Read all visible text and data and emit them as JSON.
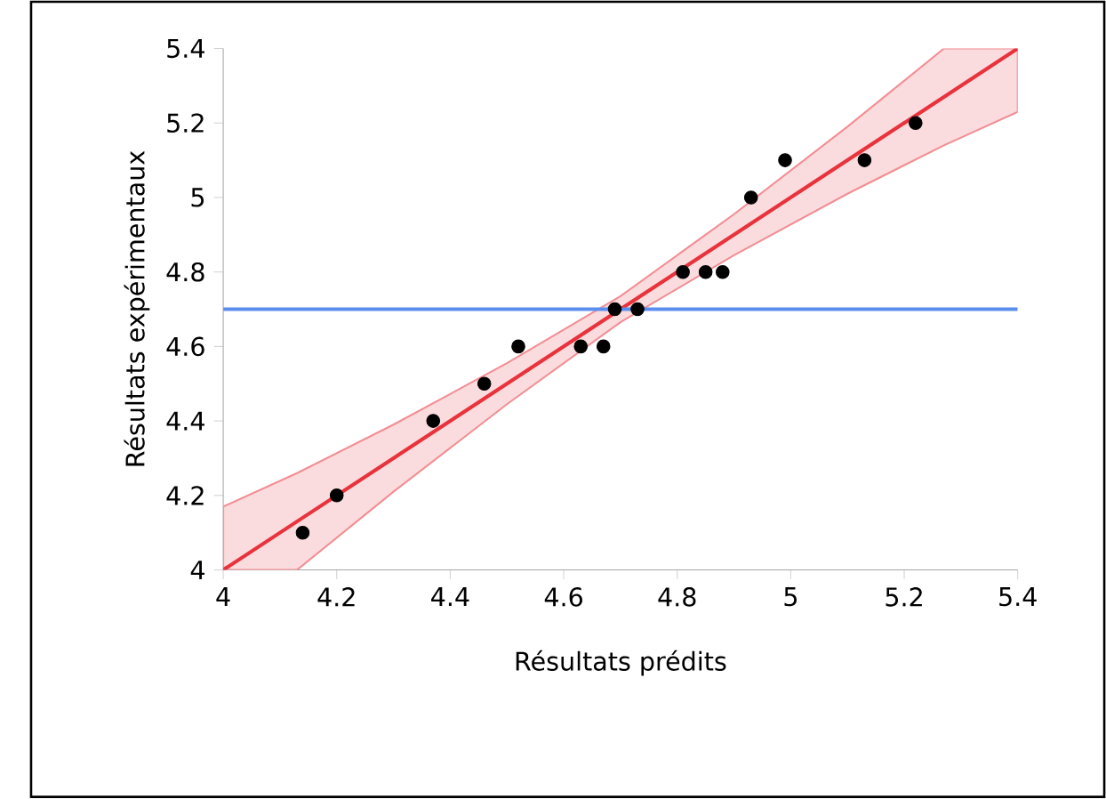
{
  "chart_data": {
    "type": "scatter",
    "xlabel": "Résultats prédits",
    "ylabel": "Résultats expérimentaux",
    "xlim": [
      4,
      5.4
    ],
    "ylim": [
      4,
      5.4
    ],
    "xticks": [
      4,
      4.2,
      4.4,
      4.6,
      4.8,
      5,
      5.2,
      5.4
    ],
    "yticks": [
      4,
      4.2,
      4.4,
      4.6,
      4.8,
      5,
      5.2,
      5.4
    ],
    "grid": false,
    "marker": "circle",
    "series": [
      {
        "type": "line",
        "color": "#e8323c",
        "marker": "none",
        "x": [
          4.0,
          4.13,
          4.3,
          4.5,
          4.7,
          4.9,
          5.1,
          5.27,
          5.4
        ],
        "values": [
          4.0,
          4.13,
          4.3,
          4.5,
          4.7,
          4.9,
          5.1,
          5.27,
          5.4
        ],
        "lower": [
          4.0,
          4.0,
          4.21,
          4.445,
          4.665,
          4.845,
          5.01,
          5.14,
          5.23
        ],
        "upper": [
          4.17,
          4.26,
          4.39,
          4.555,
          4.735,
          4.955,
          5.19,
          5.4,
          5.4
        ]
      },
      {
        "color": "#000000",
        "x": [
          4.14,
          4.2,
          4.37,
          4.46,
          4.52,
          4.63,
          4.67,
          4.69,
          4.73,
          4.81,
          4.85,
          4.88,
          4.93,
          4.99,
          5.13,
          5.22
        ],
        "values": [
          4.1,
          4.2,
          4.4,
          4.5,
          4.6,
          4.6,
          4.6,
          4.7,
          4.7,
          4.8,
          4.8,
          4.8,
          5.0,
          5.1,
          5.1,
          5.2
        ]
      }
    ],
    "ref_lines": [
      {
        "axis": "y",
        "value": 4.7,
        "color": "#5b8def"
      }
    ]
  }
}
